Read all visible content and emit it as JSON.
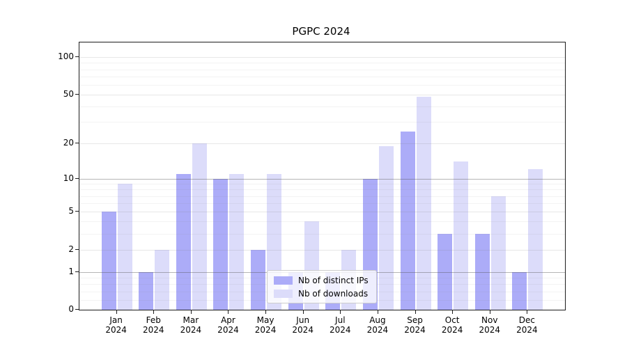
{
  "figure": {
    "title": "PGPC 2024"
  },
  "chart_data": {
    "type": "bar",
    "title": "PGPC 2024",
    "categories": [
      "Jan 2024",
      "Feb 2024",
      "Mar 2024",
      "Apr 2024",
      "May 2024",
      "Jun 2024",
      "Jul 2024",
      "Aug 2024",
      "Sep 2024",
      "Oct 2024",
      "Nov 2024",
      "Dec 2024"
    ],
    "series": [
      {
        "name": "Nb of distinct IPs",
        "color": "#acacf8",
        "values": [
          5,
          1,
          11,
          10,
          2,
          1,
          1,
          10,
          25,
          3,
          3,
          1
        ]
      },
      {
        "name": "Nb of downloads",
        "color": "#dcdcfa",
        "values": [
          9,
          2,
          20,
          11,
          11,
          4,
          2,
          19,
          48,
          14,
          7,
          12
        ]
      }
    ],
    "yscale": "log1p",
    "yticks": [
      0,
      1,
      2,
      5,
      10,
      20,
      50,
      100
    ],
    "ylim": [
      0,
      130
    ],
    "grid": "horizontal",
    "legend_position": "inside-bottom-center"
  }
}
